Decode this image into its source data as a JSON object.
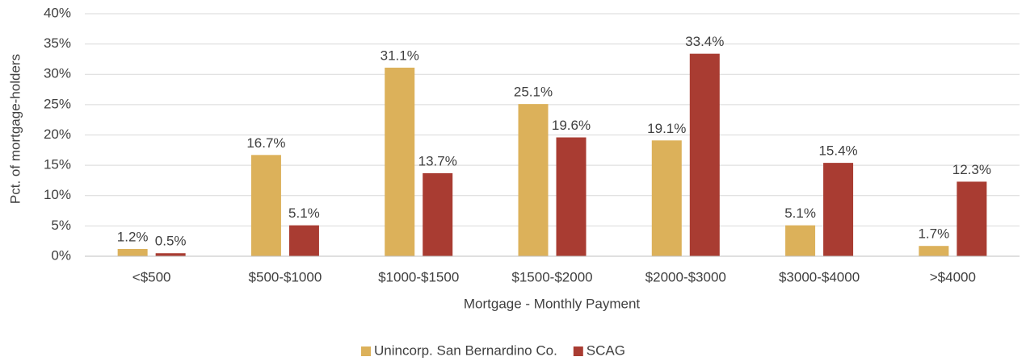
{
  "chart_data": {
    "type": "bar",
    "x_label": "Mortgage - Monthly Payment",
    "y_label": "Pct. of mortgage-holders",
    "categories": [
      "<$500",
      "$500-$1000",
      "$1000-$1500",
      "$1500-$2000",
      "$2000-$3000",
      "$3000-$4000",
      ">$4000"
    ],
    "series": [
      {
        "name": "Unincorp. San Bernardino Co.",
        "color": "#dcb15a",
        "values": [
          1.2,
          16.7,
          31.1,
          25.1,
          19.1,
          5.1,
          1.7
        ],
        "value_labels": [
          "1.2%",
          "16.7%",
          "31.1%",
          "25.1%",
          "19.1%",
          "5.1%",
          "1.7%"
        ]
      },
      {
        "name": "SCAG",
        "color": "#a93c32",
        "values": [
          0.5,
          5.1,
          13.7,
          19.6,
          33.4,
          15.4,
          12.3
        ],
        "value_labels": [
          "0.5%",
          "5.1%",
          "13.7%",
          "19.6%",
          "33.4%",
          "15.4%",
          "12.3%"
        ]
      }
    ],
    "ylim": [
      0,
      40
    ],
    "yticks": [
      {
        "value": 0,
        "label": "0%"
      },
      {
        "value": 5,
        "label": "5%"
      },
      {
        "value": 10,
        "label": "10%"
      },
      {
        "value": 15,
        "label": "15%"
      },
      {
        "value": 20,
        "label": "20%"
      },
      {
        "value": 25,
        "label": "25%"
      },
      {
        "value": 30,
        "label": "30%"
      },
      {
        "value": 35,
        "label": "35%"
      },
      {
        "value": 40,
        "label": "40%"
      }
    ],
    "grid": true,
    "legend": "bottom"
  }
}
